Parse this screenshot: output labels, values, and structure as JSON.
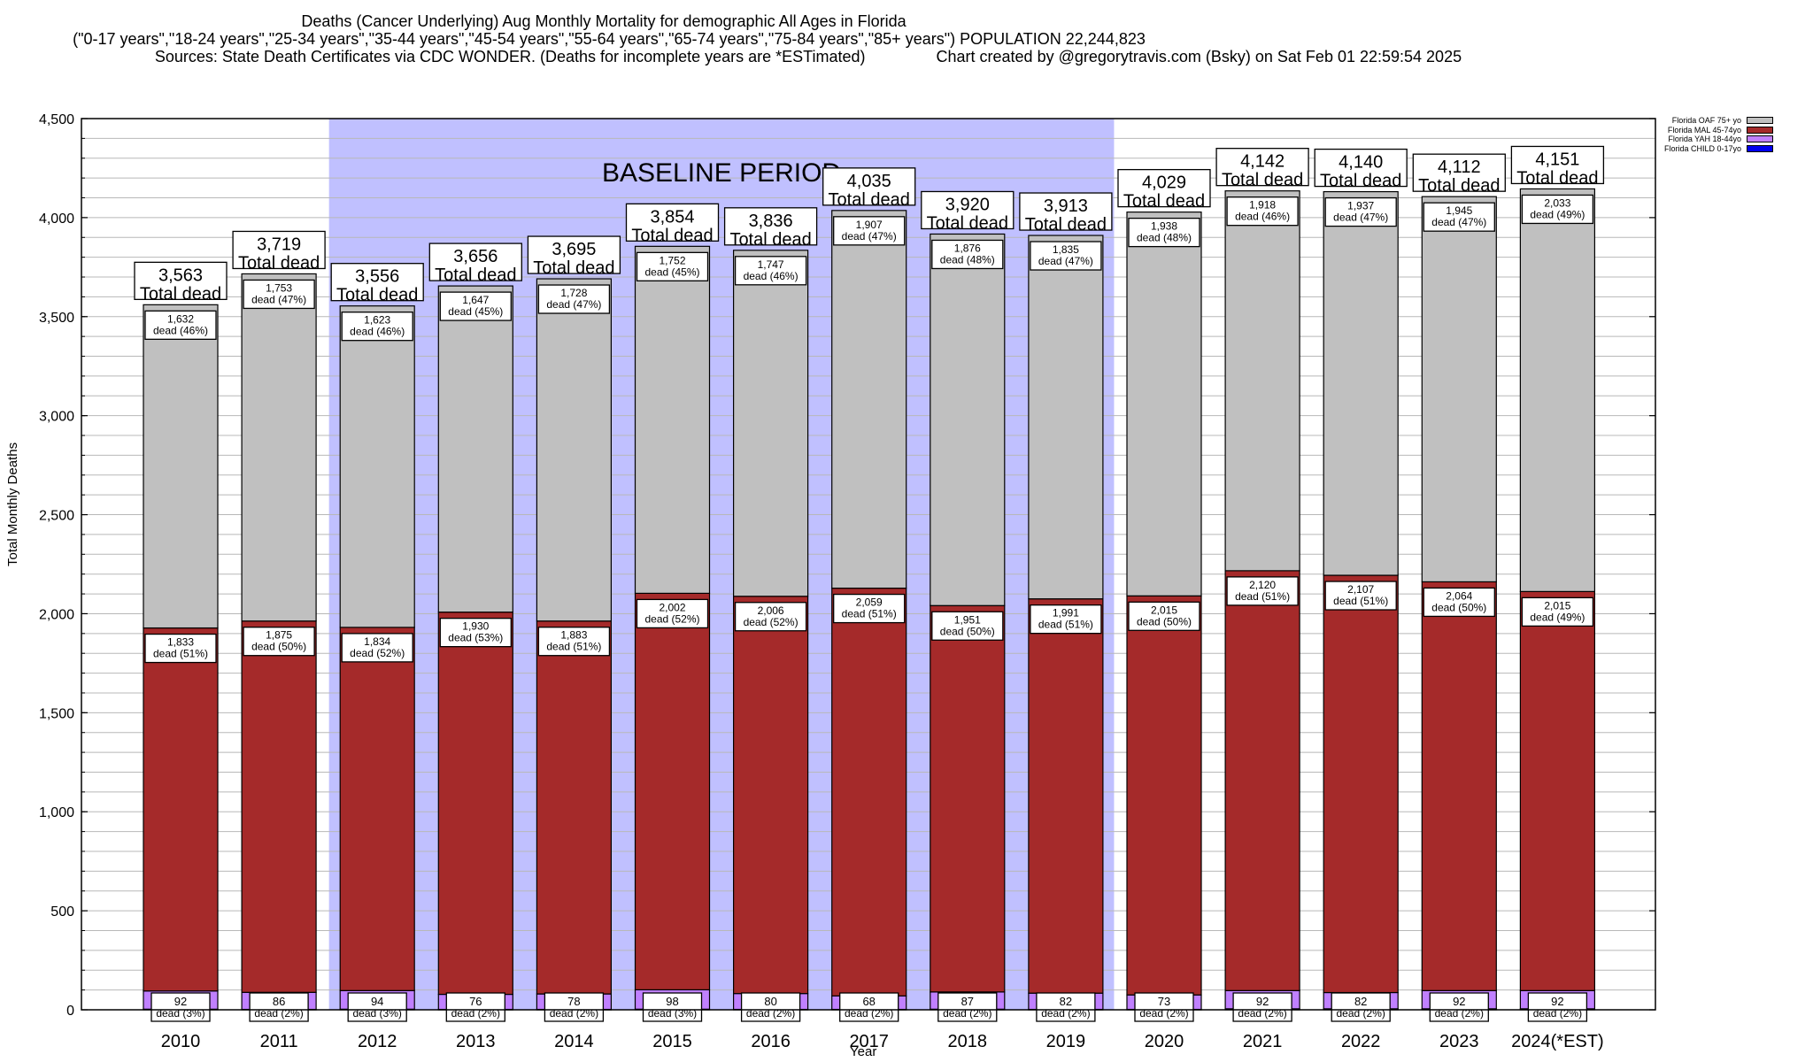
{
  "chart_data": {
    "type": "bar",
    "stacked": true,
    "title": "Deaths (Cancer Underlying) Aug Monthly Mortality for demographic All Ages in Florida",
    "subtitle": "(\"0-17 years\",\"18-24 years\",\"25-34 years\",\"35-44 years\",\"45-54 years\",\"55-64 years\",\"65-74 years\",\"75-84 years\",\"85+ years\") POPULATION 22,244,823",
    "sources": "Sources: State Death Certificates via CDC WONDER. (Deaths for incomplete years are *ESTimated)",
    "credit": "Chart created by @gregorytravis.com (Bsky) on Sat Feb 01 22:59:54 2025",
    "xlabel": "Year",
    "ylabel": "Total Monthly Deaths",
    "ylim": [
      0,
      4500
    ],
    "yticks": [
      0,
      500,
      1000,
      1500,
      2000,
      2500,
      3000,
      3500,
      4000,
      4500
    ],
    "ytick_labels": [
      "0",
      "500",
      "1,000",
      "1,500",
      "2,000",
      "2,500",
      "3,000",
      "3,500",
      "4,000",
      "4,500"
    ],
    "minor_grid_step": 100,
    "grid": true,
    "legend_position": "top-right",
    "categories": [
      "2010",
      "2011",
      "2012",
      "2013",
      "2014",
      "2015",
      "2016",
      "2017",
      "2018",
      "2019",
      "2020",
      "2021",
      "2022",
      "2023",
      "2024(*EST)"
    ],
    "totals": [
      3563,
      3719,
      3556,
      3656,
      3695,
      3854,
      3836,
      4035,
      3920,
      3913,
      4029,
      4142,
      4140,
      4112,
      4151
    ],
    "total_labels": [
      "3,563",
      "3,719",
      "3,556",
      "3,656",
      "3,695",
      "3,854",
      "3,836",
      "4,035",
      "3,920",
      "3,913",
      "4,029",
      "4,142",
      "4,140",
      "4,112",
      "4,151"
    ],
    "total_suffix": "Total dead",
    "series": [
      {
        "name": "Florida CHILD 0-17yo",
        "color": "#0000ee",
        "values": [
          3,
          2,
          3,
          2,
          2,
          3,
          2,
          2,
          3,
          2,
          2,
          5,
          5,
          5,
          5
        ]
      },
      {
        "name": "Florida YAH 18-44yo",
        "color": "#c080ff",
        "values": [
          92,
          86,
          94,
          76,
          78,
          98,
          80,
          68,
          87,
          82,
          73,
          92,
          82,
          92,
          92
        ],
        "labels": [
          "92",
          "86",
          "94",
          "76",
          "78",
          "98",
          "80",
          "68",
          "87",
          "82",
          "73",
          "92",
          "82",
          "92",
          "92"
        ],
        "pct_labels": [
          "dead (3%)",
          "dead (2%)",
          "dead (3%)",
          "dead (2%)",
          "dead (2%)",
          "dead (3%)",
          "dead (2%)",
          "dead (2%)",
          "dead (2%)",
          "dead (2%)",
          "dead (2%)",
          "dead (2%)",
          "dead (2%)",
          "dead (2%)",
          "dead (2%)"
        ]
      },
      {
        "name": "Florida MAL 45-74yo",
        "color": "#a52a2a",
        "values": [
          1833,
          1875,
          1834,
          1930,
          1883,
          2002,
          2006,
          2059,
          1951,
          1991,
          2015,
          2120,
          2107,
          2064,
          2015
        ],
        "labels": [
          "1,833",
          "1,875",
          "1,834",
          "1,930",
          "1,883",
          "2,002",
          "2,006",
          "2,059",
          "1,951",
          "1,991",
          "2,015",
          "2,120",
          "2,107",
          "2,064",
          "2,015"
        ],
        "pct_labels": [
          "dead (51%)",
          "dead (50%)",
          "dead (52%)",
          "dead (53%)",
          "dead (51%)",
          "dead (52%)",
          "dead (52%)",
          "dead (51%)",
          "dead (50%)",
          "dead (51%)",
          "dead (50%)",
          "dead (51%)",
          "dead (51%)",
          "dead (50%)",
          "dead (49%)"
        ]
      },
      {
        "name": "Florida OAF 75+ yo",
        "color": "#c0c0c0",
        "values": [
          1632,
          1753,
          1623,
          1647,
          1728,
          1752,
          1747,
          1907,
          1876,
          1835,
          1938,
          1918,
          1937,
          1945,
          2033
        ],
        "labels": [
          "1,632",
          "1,753",
          "1,623",
          "1,647",
          "1,728",
          "1,752",
          "1,747",
          "1,907",
          "1,876",
          "1,835",
          "1,938",
          "1,918",
          "1,937",
          "1,945",
          "2,033"
        ],
        "pct_labels": [
          "dead (46%)",
          "dead (47%)",
          "dead (46%)",
          "dead (45%)",
          "dead (47%)",
          "dead (45%)",
          "dead (46%)",
          "dead (47%)",
          "dead (48%)",
          "dead (47%)",
          "dead (48%)",
          "dead (46%)",
          "dead (47%)",
          "dead (47%)",
          "dead (49%)"
        ]
      }
    ],
    "legend_order": [
      "Florida OAF 75+ yo",
      "Florida MAL 45-74yo",
      "Florida YAH 18-44yo",
      "Florida CHILD 0-17yo"
    ],
    "annotations": [
      {
        "text": "BASELINE PERIOD",
        "span_categories": [
          "2012",
          "2019"
        ],
        "color": "#c0c0ff"
      }
    ]
  }
}
